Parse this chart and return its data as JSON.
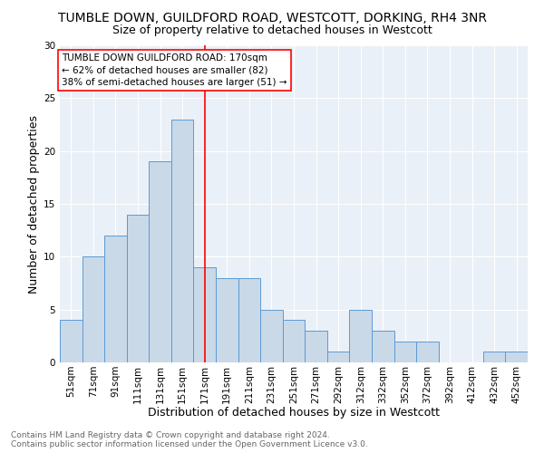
{
  "title1": "TUMBLE DOWN, GUILDFORD ROAD, WESTCOTT, DORKING, RH4 3NR",
  "title2": "Size of property relative to detached houses in Westcott",
  "xlabel": "Distribution of detached houses by size in Westcott",
  "ylabel": "Number of detached properties",
  "footnote": "Contains HM Land Registry data © Crown copyright and database right 2024.\nContains public sector information licensed under the Open Government Licence v3.0.",
  "bar_labels": [
    "51sqm",
    "71sqm",
    "91sqm",
    "111sqm",
    "131sqm",
    "151sqm",
    "171sqm",
    "191sqm",
    "211sqm",
    "231sqm",
    "251sqm",
    "271sqm",
    "292sqm",
    "312sqm",
    "332sqm",
    "352sqm",
    "372sqm",
    "392sqm",
    "412sqm",
    "432sqm",
    "452sqm"
  ],
  "bar_values": [
    4,
    10,
    12,
    14,
    19,
    23,
    9,
    8,
    8,
    5,
    4,
    3,
    1,
    5,
    3,
    2,
    2,
    0,
    0,
    1,
    1
  ],
  "bar_color": "#c9d9e8",
  "bar_edge_color": "#5b9bd5",
  "annotation_line_color": "red",
  "annotation_text": "TUMBLE DOWN GUILDFORD ROAD: 170sqm\n← 62% of detached houses are smaller (82)\n38% of semi-detached houses are larger (51) →",
  "ylim": [
    0,
    30
  ],
  "yticks": [
    0,
    5,
    10,
    15,
    20,
    25,
    30
  ],
  "bg_color": "#eaf0f7",
  "grid_color": "white",
  "title1_fontsize": 10,
  "title2_fontsize": 9,
  "xlabel_fontsize": 9,
  "ylabel_fontsize": 9,
  "tick_fontsize": 7.5,
  "annotation_fontsize": 7.5,
  "footnote_fontsize": 6.5
}
